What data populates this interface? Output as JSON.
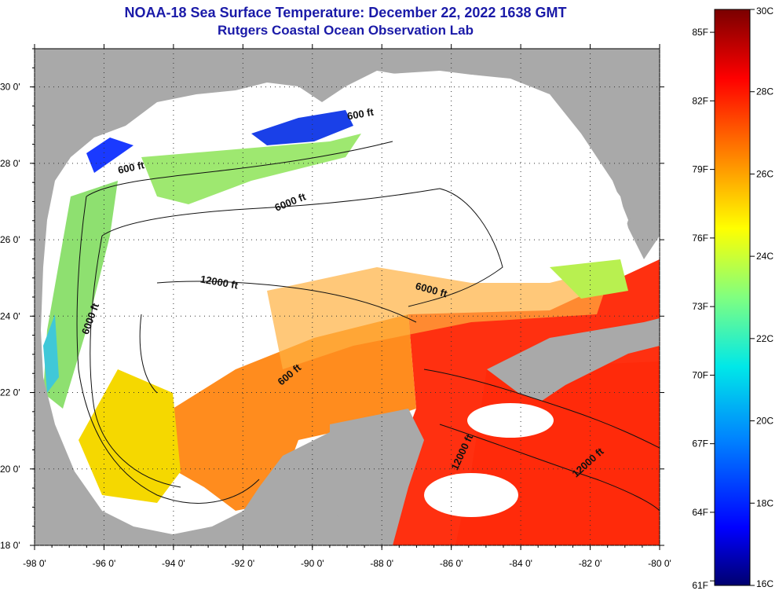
{
  "title": {
    "line1": "NOAA-18 Sea Surface Temperature:  December 22, 2022 1638 GMT",
    "line2": "Rutgers Coastal Ocean Observation Lab"
  },
  "colors": {
    "title": "#1a1aa8",
    "land": "#a9a9a9",
    "cloud": "#ffffff"
  },
  "map": {
    "lon_range": [
      -98,
      -80
    ],
    "lat_range": [
      18,
      31
    ],
    "lon_ticks": [
      "-98 0'",
      "-96 0'",
      "-94 0'",
      "-92 0'",
      "-90 0'",
      "-88 0'",
      "-86 0'",
      "-84 0'",
      "-82 0'",
      "-80 0'"
    ],
    "lat_ticks": [
      "18 0'",
      "20 0'",
      "22 0'",
      "24 0'",
      "26 0'",
      "28 0'",
      "30 0'"
    ],
    "grid": "dotted",
    "contour_labels": [
      {
        "text": "600 ft",
        "lon": -95.2,
        "lat": 27.8,
        "rot": -12
      },
      {
        "text": "600 ft",
        "lon": -88.6,
        "lat": 29.2,
        "rot": -10
      },
      {
        "text": "6000 ft",
        "lon": -90.6,
        "lat": 26.9,
        "rot": -22
      },
      {
        "text": "12000 ft",
        "lon": -92.7,
        "lat": 24.8,
        "rot": 10
      },
      {
        "text": "6000 ft",
        "lon": -86.6,
        "lat": 24.6,
        "rot": 15
      },
      {
        "text": "6000 ft",
        "lon": -96.3,
        "lat": 23.9,
        "rot": -70
      },
      {
        "text": "600 ft",
        "lon": -90.6,
        "lat": 22.4,
        "rot": -40
      },
      {
        "text": "12000 ft",
        "lon": -85.6,
        "lat": 20.4,
        "rot": -65
      },
      {
        "text": "12000 ft",
        "lon": -82.0,
        "lat": 20.1,
        "rot": -42
      }
    ]
  },
  "colorbar": {
    "labels_f": [
      "85F",
      "82F",
      "79F",
      "76F",
      "73F",
      "70F",
      "67F",
      "64F",
      "61F"
    ],
    "labels_c": [
      "30C",
      "28C",
      "26C",
      "24C",
      "22C",
      "20C",
      "18C",
      "16C"
    ],
    "range_c": [
      16,
      30
    ]
  }
}
